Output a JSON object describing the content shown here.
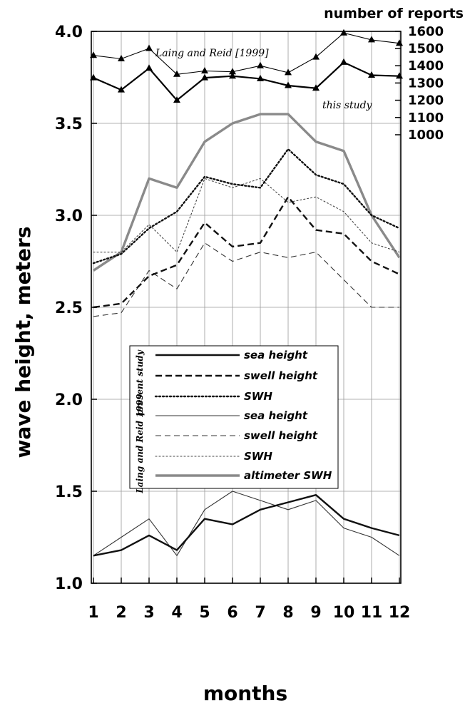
{
  "chart_data": {
    "type": "line",
    "xlabel": "months",
    "ylabel": "wave height, meters",
    "y2label": "number of reports",
    "x": [
      1,
      2,
      3,
      4,
      5,
      6,
      7,
      8,
      9,
      10,
      11,
      12
    ],
    "x_tick_labels": [
      "1",
      "2",
      "3",
      "4",
      "5",
      "6",
      "7",
      "8",
      "9",
      "10",
      "11",
      "12"
    ],
    "ylim": [
      1.0,
      4.0
    ],
    "y_ticks": [
      1.0,
      1.5,
      2.0,
      2.5,
      3.0,
      3.5,
      4.0
    ],
    "y_tick_labels": [
      "1.0",
      "1.5",
      "2.0",
      "2.5",
      "3.0",
      "3.5",
      "4.0"
    ],
    "y2lim": [
      1000,
      1650
    ],
    "y2_ticks": [
      1000,
      1100,
      1200,
      1300,
      1400,
      1500,
      1600
    ],
    "y2_tick_labels": [
      "1000",
      "1100",
      "1200",
      "1300",
      "1400",
      "1500",
      "1600"
    ],
    "grid": true,
    "legend_position": "center-left",
    "legend_groups": [
      "present study",
      "Laing and Reid 1999"
    ],
    "series": [
      {
        "name": "sea height",
        "group": "present study",
        "style": "solid-thick",
        "color": "#111111",
        "values": [
          1.15,
          1.18,
          1.26,
          1.18,
          1.35,
          1.32,
          1.4,
          1.44,
          1.48,
          1.35,
          1.3,
          1.26
        ]
      },
      {
        "name": "swell height",
        "group": "present study",
        "style": "dashed-thick",
        "color": "#111111",
        "values": [
          2.5,
          2.52,
          2.67,
          2.73,
          2.96,
          2.83,
          2.85,
          3.1,
          2.92,
          2.9,
          2.75,
          2.68
        ]
      },
      {
        "name": "SWH",
        "group": "present study",
        "style": "dotted-thick",
        "color": "#111111",
        "values": [
          2.74,
          2.79,
          2.93,
          3.02,
          3.21,
          3.17,
          3.15,
          3.36,
          3.22,
          3.17,
          3.0,
          2.93
        ]
      },
      {
        "name": "sea height",
        "group": "Laing and Reid 1999",
        "style": "solid-thin",
        "color": "#333333",
        "values": [
          1.15,
          1.25,
          1.35,
          1.15,
          1.4,
          1.5,
          1.45,
          1.4,
          1.45,
          1.3,
          1.25,
          1.15
        ]
      },
      {
        "name": "swell height",
        "group": "Laing and Reid 1999",
        "style": "dashed-thin",
        "color": "#333333",
        "values": [
          2.45,
          2.47,
          2.7,
          2.6,
          2.85,
          2.75,
          2.8,
          2.77,
          2.8,
          2.65,
          2.5,
          2.5
        ]
      },
      {
        "name": "SWH",
        "group": "Laing and Reid 1999",
        "style": "dotted-thin",
        "color": "#444444",
        "values": [
          2.8,
          2.8,
          2.95,
          2.8,
          3.2,
          3.15,
          3.2,
          3.07,
          3.1,
          3.02,
          2.85,
          2.8
        ]
      },
      {
        "name": "altimeter SWH",
        "group": "",
        "style": "solid-gray",
        "color": "#8a8a8a",
        "values": [
          2.7,
          2.8,
          3.2,
          3.15,
          3.4,
          3.5,
          3.55,
          3.55,
          3.4,
          3.35,
          3.0,
          2.77
        ]
      }
    ],
    "reports_series": [
      {
        "label": "Laing and Reid [1999]",
        "marker": "triangle",
        "axis": "right",
        "values": [
          1460,
          1440,
          1500,
          1350,
          1370,
          1365,
          1400,
          1360,
          1450,
          1590,
          1550,
          1530
        ]
      },
      {
        "label": "this study",
        "marker": "triangle",
        "axis": "right",
        "values": [
          1330,
          1260,
          1385,
          1200,
          1330,
          1340,
          1325,
          1285,
          1270,
          1420,
          1345,
          1340
        ]
      }
    ]
  }
}
